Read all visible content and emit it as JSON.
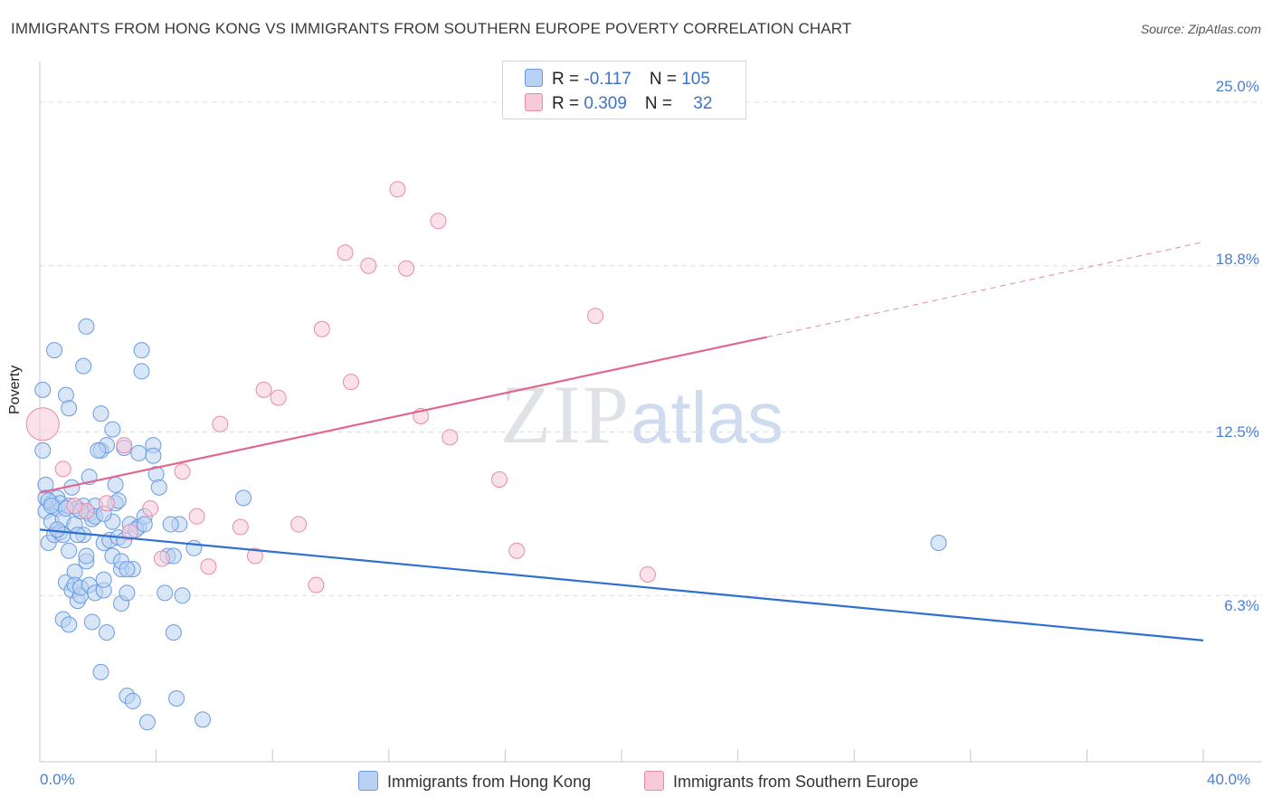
{
  "title": "IMMIGRANTS FROM HONG KONG VS IMMIGRANTS FROM SOUTHERN EUROPE POVERTY CORRELATION CHART",
  "source": "Source: ZipAtlas.com",
  "watermark": {
    "zip": "ZIP",
    "atlas": "atlas"
  },
  "legend": {
    "series1": {
      "r_label": "R = ",
      "r_value": "-0.117",
      "n_label": "N = ",
      "n_value": "105"
    },
    "series2": {
      "r_label": "R = ",
      "r_value": "0.309",
      "n_label": "N = ",
      "n_value": "32"
    }
  },
  "colors": {
    "blue": "#6a9be0",
    "blue_fill": "#b9d1f3",
    "blue_line": "#2f6fd0",
    "pink": "#e88aa8",
    "pink_fill": "#f8cad8",
    "pink_line": "#e06890",
    "tick": "#4a7fd1"
  },
  "chart_data": {
    "type": "scatter",
    "title": "IMMIGRANTS FROM HONG KONG VS IMMIGRANTS FROM SOUTHERN EUROPE POVERTY CORRELATION CHART",
    "xlabel": "",
    "ylabel": "Poverty",
    "xlim": [
      0,
      40
    ],
    "ylim": [
      0,
      26.2
    ],
    "x_tick_labels": [
      "0.0%",
      "40.0%"
    ],
    "y_ticks": [
      6.3,
      12.5,
      18.8,
      25.0
    ],
    "y_tick_labels": [
      "6.3%",
      "12.5%",
      "18.8%",
      "25.0%"
    ],
    "grid": "horizontal dashed",
    "legend_position": "bottom-center",
    "series": [
      {
        "name": "Immigrants from Hong Kong",
        "color": "#6a9be0",
        "trend": {
          "x": [
            0,
            40
          ],
          "y": [
            8.8,
            4.6
          ]
        },
        "points": [
          [
            0.1,
            14.1
          ],
          [
            0.1,
            11.8
          ],
          [
            0.2,
            10.5
          ],
          [
            0.2,
            10.0
          ],
          [
            0.2,
            9.5
          ],
          [
            0.3,
            8.3
          ],
          [
            0.4,
            9.8
          ],
          [
            0.4,
            9.1
          ],
          [
            0.5,
            15.6
          ],
          [
            0.5,
            8.6
          ],
          [
            0.6,
            10.0
          ],
          [
            0.6,
            9.6
          ],
          [
            0.7,
            9.8
          ],
          [
            0.7,
            8.7
          ],
          [
            0.8,
            9.2
          ],
          [
            0.8,
            8.6
          ],
          [
            0.8,
            5.4
          ],
          [
            0.9,
            13.9
          ],
          [
            0.9,
            6.8
          ],
          [
            1.0,
            13.4
          ],
          [
            1.0,
            8.0
          ],
          [
            1.0,
            5.2
          ],
          [
            1.0,
            9.7
          ],
          [
            1.1,
            10.4
          ],
          [
            1.1,
            6.5
          ],
          [
            1.2,
            7.2
          ],
          [
            1.2,
            9.0
          ],
          [
            1.2,
            6.7
          ],
          [
            1.3,
            9.6
          ],
          [
            1.3,
            6.1
          ],
          [
            1.4,
            6.3
          ],
          [
            1.4,
            6.6
          ],
          [
            1.5,
            15.0
          ],
          [
            1.5,
            8.6
          ],
          [
            1.5,
            9.7
          ],
          [
            1.6,
            16.5
          ],
          [
            1.6,
            7.6
          ],
          [
            1.6,
            7.8
          ],
          [
            1.7,
            10.8
          ],
          [
            1.7,
            9.4
          ],
          [
            1.7,
            6.7
          ],
          [
            1.8,
            5.3
          ],
          [
            1.8,
            9.2
          ],
          [
            1.9,
            6.4
          ],
          [
            1.9,
            9.7
          ],
          [
            2.1,
            13.2
          ],
          [
            2.1,
            3.4
          ],
          [
            2.1,
            11.8
          ],
          [
            2.2,
            6.5
          ],
          [
            2.2,
            6.9
          ],
          [
            2.2,
            8.3
          ],
          [
            2.3,
            4.9
          ],
          [
            2.3,
            12.0
          ],
          [
            2.4,
            8.4
          ],
          [
            2.5,
            12.6
          ],
          [
            2.5,
            9.1
          ],
          [
            2.5,
            7.8
          ],
          [
            2.6,
            9.8
          ],
          [
            2.6,
            10.5
          ],
          [
            2.7,
            8.5
          ],
          [
            2.8,
            7.3
          ],
          [
            2.8,
            7.6
          ],
          [
            2.8,
            6.0
          ],
          [
            2.9,
            11.9
          ],
          [
            2.9,
            8.4
          ],
          [
            3.0,
            2.5
          ],
          [
            3.0,
            6.4
          ],
          [
            3.1,
            9.0
          ],
          [
            3.2,
            2.3
          ],
          [
            3.2,
            7.3
          ],
          [
            3.4,
            11.7
          ],
          [
            3.4,
            8.9
          ],
          [
            3.5,
            14.8
          ],
          [
            3.5,
            15.6
          ],
          [
            3.6,
            9.3
          ],
          [
            3.7,
            1.5
          ],
          [
            3.9,
            12.0
          ],
          [
            3.9,
            11.6
          ],
          [
            4.0,
            10.9
          ],
          [
            4.1,
            10.4
          ],
          [
            4.3,
            6.4
          ],
          [
            4.4,
            7.8
          ],
          [
            4.6,
            4.9
          ],
          [
            4.6,
            7.8
          ],
          [
            4.7,
            2.4
          ],
          [
            4.8,
            9.0
          ],
          [
            4.9,
            6.3
          ],
          [
            5.3,
            8.1
          ],
          [
            5.6,
            1.6
          ],
          [
            7.0,
            10.0
          ],
          [
            30.9,
            8.3
          ],
          [
            0.3,
            9.9
          ],
          [
            0.6,
            8.8
          ],
          [
            1.3,
            8.6
          ],
          [
            1.9,
            9.3
          ],
          [
            2.0,
            11.8
          ],
          [
            2.7,
            9.9
          ],
          [
            3.3,
            8.8
          ],
          [
            0.4,
            9.7
          ],
          [
            0.9,
            9.6
          ],
          [
            1.4,
            9.5
          ],
          [
            2.2,
            9.4
          ],
          [
            3.0,
            7.3
          ],
          [
            3.6,
            9.0
          ],
          [
            4.5,
            9.0
          ]
        ]
      },
      {
        "name": "Immigrants from Southern Europe",
        "color": "#e88aa8",
        "trend": {
          "x": [
            0,
            25
          ],
          "y": [
            10.2,
            16.1
          ]
        },
        "trend_dashed": {
          "x": [
            25,
            40
          ],
          "y": [
            16.1,
            19.7
          ]
        },
        "points": [
          [
            0.1,
            12.8
          ],
          [
            0.8,
            11.1
          ],
          [
            1.6,
            9.5
          ],
          [
            2.3,
            9.8
          ],
          [
            2.9,
            12.0
          ],
          [
            3.1,
            8.7
          ],
          [
            3.8,
            9.6
          ],
          [
            4.2,
            7.7
          ],
          [
            4.9,
            11.0
          ],
          [
            5.4,
            9.3
          ],
          [
            5.8,
            7.4
          ],
          [
            6.2,
            12.8
          ],
          [
            6.9,
            8.9
          ],
          [
            7.4,
            7.8
          ],
          [
            7.7,
            14.1
          ],
          [
            8.2,
            13.8
          ],
          [
            8.9,
            9.0
          ],
          [
            9.5,
            6.7
          ],
          [
            9.7,
            16.4
          ],
          [
            10.5,
            19.3
          ],
          [
            10.7,
            14.4
          ],
          [
            11.3,
            18.8
          ],
          [
            12.3,
            21.7
          ],
          [
            12.6,
            18.7
          ],
          [
            13.1,
            13.1
          ],
          [
            13.7,
            20.5
          ],
          [
            14.1,
            12.3
          ],
          [
            15.8,
            10.7
          ],
          [
            16.4,
            8.0
          ],
          [
            19.1,
            16.9
          ],
          [
            20.9,
            7.1
          ],
          [
            1.2,
            9.7
          ]
        ]
      }
    ]
  }
}
